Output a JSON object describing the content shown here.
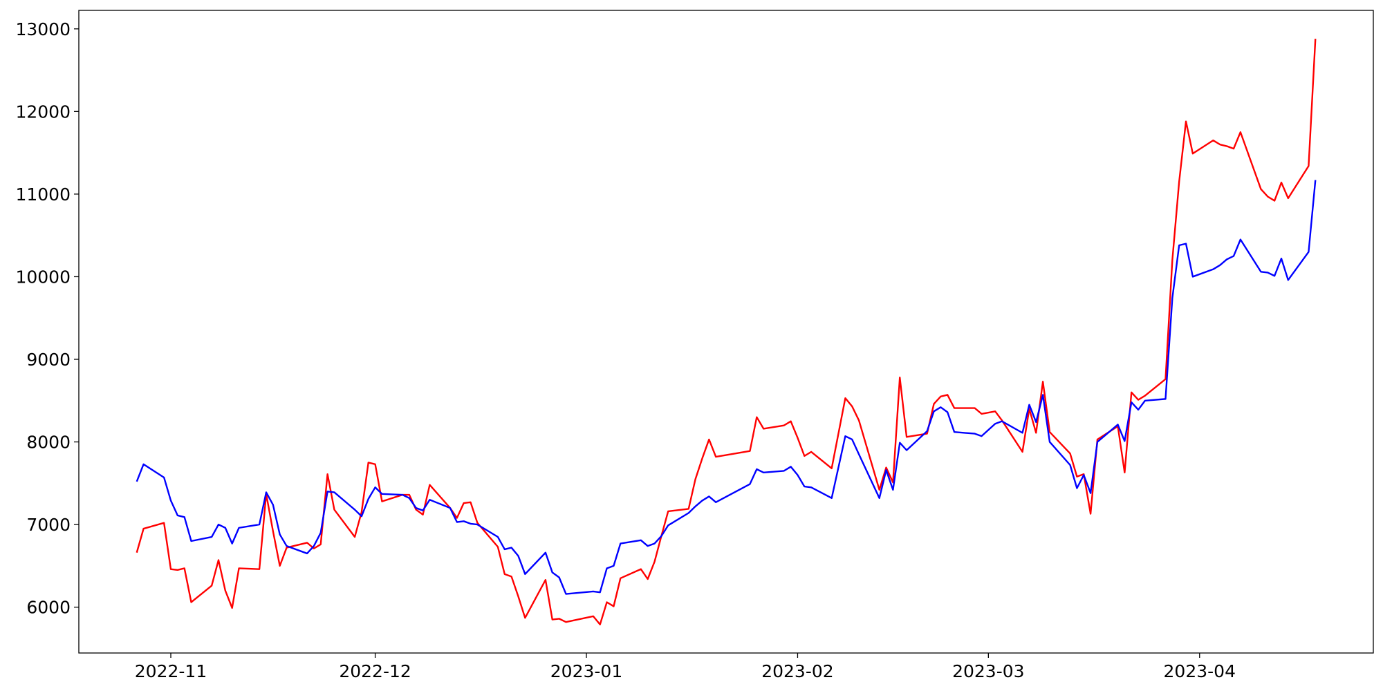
{
  "chart_data": {
    "type": "line",
    "x": [
      -5,
      -4,
      -1,
      0,
      1,
      2,
      3,
      6,
      7,
      8,
      9,
      10,
      13,
      14,
      15,
      16,
      17,
      20,
      21,
      22,
      23,
      24,
      27,
      28,
      29,
      30,
      31,
      34,
      35,
      36,
      37,
      38,
      41,
      42,
      43,
      44,
      45,
      48,
      49,
      50,
      51,
      52,
      55,
      56,
      57,
      58,
      62,
      63,
      64,
      65,
      66,
      69,
      70,
      71,
      72,
      73,
      76,
      77,
      78,
      79,
      80,
      85,
      86,
      87,
      90,
      91,
      92,
      93,
      94,
      97,
      99,
      100,
      101,
      104,
      105,
      106,
      107,
      108,
      111,
      112,
      113,
      114,
      115,
      118,
      119,
      121,
      122,
      125,
      126,
      127,
      128,
      129,
      132,
      133,
      134,
      135,
      136,
      139,
      140,
      141,
      142,
      143,
      146,
      147,
      148,
      149,
      150,
      153,
      154,
      155,
      156,
      157,
      160,
      161,
      162,
      163,
      164,
      167,
      168
    ],
    "series": [
      {
        "color": "#ff0000",
        "values": [
          6660,
          6950,
          7020,
          6460,
          6450,
          6470,
          6060,
          6260,
          6570,
          6200,
          5990,
          6470,
          6460,
          7370,
          6920,
          6500,
          6720,
          6780,
          6710,
          6760,
          7610,
          7180,
          6850,
          7150,
          7750,
          7730,
          7280,
          7360,
          7360,
          7180,
          7120,
          7480,
          7200,
          7080,
          7260,
          7270,
          7020,
          6730,
          6400,
          6370,
          6130,
          5870,
          6330,
          5850,
          5860,
          5820,
          5890,
          5790,
          6060,
          6010,
          6350,
          6460,
          6340,
          6550,
          6860,
          7160,
          7190,
          7550,
          7800,
          8030,
          7820,
          7890,
          8300,
          8160,
          8200,
          8250,
          8050,
          7830,
          7880,
          7680,
          8530,
          8430,
          8260,
          7420,
          7690,
          7510,
          8780,
          8060,
          8100,
          8460,
          8550,
          8570,
          8410,
          8410,
          8340,
          8370,
          8260,
          7880,
          8400,
          8110,
          8730,
          8120,
          7860,
          7580,
          7610,
          7130,
          8030,
          8190,
          7630,
          8600,
          8510,
          8560,
          8760,
          10200,
          11150,
          11880,
          11490,
          11650,
          11600,
          11580,
          11550,
          11750,
          11060,
          10970,
          10920,
          11140,
          10950,
          11340,
          12880
        ]
      },
      {
        "color": "#0000ff",
        "values": [
          7520,
          7730,
          7570,
          7290,
          7110,
          7090,
          6800,
          6850,
          7000,
          6960,
          6770,
          6960,
          7000,
          7390,
          7240,
          6880,
          6740,
          6650,
          6740,
          6900,
          7400,
          7390,
          7180,
          7100,
          7310,
          7450,
          7370,
          7360,
          7320,
          7200,
          7170,
          7300,
          7200,
          7030,
          7040,
          7010,
          7000,
          6850,
          6700,
          6720,
          6620,
          6400,
          6660,
          6420,
          6360,
          6160,
          6190,
          6180,
          6470,
          6500,
          6770,
          6810,
          6740,
          6770,
          6860,
          6990,
          7140,
          7220,
          7290,
          7340,
          7270,
          7490,
          7670,
          7630,
          7650,
          7700,
          7600,
          7460,
          7450,
          7320,
          8070,
          8030,
          7850,
          7320,
          7660,
          7420,
          7990,
          7900,
          8130,
          8370,
          8420,
          8360,
          8120,
          8100,
          8070,
          8220,
          8250,
          8110,
          8450,
          8240,
          8570,
          8000,
          7720,
          7440,
          7600,
          7380,
          8000,
          8210,
          8010,
          8480,
          8390,
          8500,
          8520,
          9740,
          10380,
          10400,
          10000,
          10090,
          10140,
          10210,
          10250,
          10450,
          10060,
          10050,
          10010,
          10220,
          9960,
          10300,
          11170
        ]
      }
    ],
    "xlim": [
      -13.5,
      176.5
    ],
    "xticks": [
      {
        "value": 0,
        "label": "2022-11"
      },
      {
        "value": 30,
        "label": "2022-12"
      },
      {
        "value": 61,
        "label": "2023-01"
      },
      {
        "value": 92,
        "label": "2023-02"
      },
      {
        "value": 120,
        "label": "2023-03"
      },
      {
        "value": 151,
        "label": "2023-04"
      }
    ],
    "ylim": [
      5445,
      13224
    ],
    "yticks": [
      6000,
      7000,
      8000,
      9000,
      10000,
      11000,
      12000,
      13000
    ]
  }
}
